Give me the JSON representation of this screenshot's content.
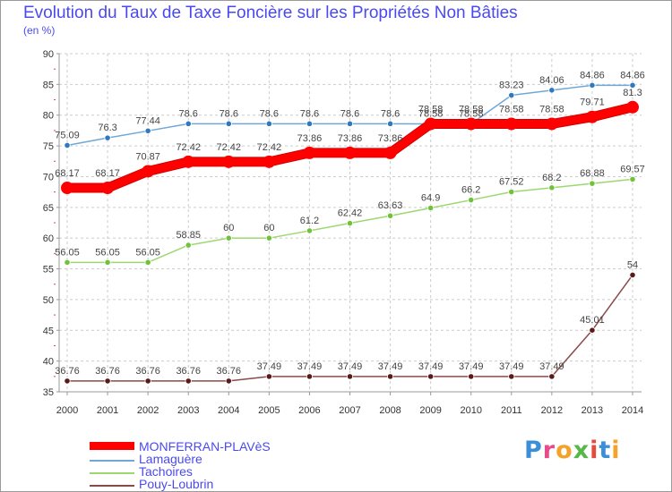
{
  "title": "Evolution du Taux de Taxe Foncière sur les Propriétés Non Bâties",
  "subtitle": "(en %)",
  "logo_text": "Proxiti",
  "logo_colors": [
    "#3a8fd8",
    "#e84a8a",
    "#f4a22a",
    "#55b848",
    "#e84a3a",
    "#3a8fd8",
    "#f4a22a"
  ],
  "chart_data": {
    "type": "line",
    "title": "Evolution du Taux de Taxe Foncière sur les Propriétés Non Bâties",
    "ylabel": "(en %)",
    "xlabel": "",
    "ylim": [
      35,
      90
    ],
    "yticks": [
      35,
      40,
      45,
      50,
      55,
      60,
      65,
      70,
      75,
      80,
      85,
      90
    ],
    "ytick_labels": [
      "35",
      "40",
      "45",
      "50",
      "55",
      "60",
      "65",
      "70",
      "75",
      "80",
      "85",
      "90"
    ],
    "categories": [
      "2000",
      "2001",
      "2002",
      "2003",
      "2004",
      "2005",
      "2006",
      "2007",
      "2008",
      "2009",
      "2010",
      "2011",
      "2012",
      "2013",
      "2014"
    ],
    "grid": "horizontal",
    "legend_position": "bottom-left",
    "series": [
      {
        "name": "Lamaguère",
        "color": "#6fa8d8",
        "marker": "#2f79c0",
        "width": "thin",
        "values": [
          75.09,
          76.3,
          77.44,
          78.6,
          78.6,
          78.6,
          78.6,
          78.6,
          78.6,
          78.58,
          78.58,
          83.23,
          84.06,
          84.86,
          84.86
        ],
        "labels": [
          "75.09",
          "76.3",
          "77.44",
          "78.6",
          "78.6",
          "78.6",
          "78.6",
          "78.6",
          "78.6",
          "78.58",
          "78.58",
          "83.23",
          "84.06",
          "84.86",
          "84.86"
        ]
      },
      {
        "name": "Tachoires",
        "color": "#9cd870",
        "marker": "#6fc23a",
        "width": "thin",
        "values": [
          56.05,
          56.05,
          56.05,
          58.85,
          60,
          60,
          61.2,
          62.42,
          63.63,
          64.9,
          66.2,
          67.52,
          68.2,
          68.88,
          69.57
        ],
        "labels": [
          "56.05",
          "56.05",
          "56.05",
          "58.85",
          "60",
          "60",
          "61.2",
          "62.42",
          "63.63",
          "64.9",
          "66.2",
          "67.52",
          "68.2",
          "68.88",
          "69.57"
        ]
      },
      {
        "name": "Pouy-Loubrin",
        "color": "#8a4a4a",
        "marker": "#5a1a1a",
        "width": "thin",
        "values": [
          36.76,
          36.76,
          36.76,
          36.76,
          36.76,
          37.49,
          37.49,
          37.49,
          37.49,
          37.49,
          37.49,
          37.49,
          37.49,
          45.01,
          54
        ],
        "labels": [
          "36.76",
          "36.76",
          "36.76",
          "36.76",
          "36.76",
          "37.49",
          "37.49",
          "37.49",
          "37.49",
          "37.49",
          "37.49",
          "37.49",
          "37.49",
          "45.01",
          "54"
        ]
      },
      {
        "name": "MONFERRAN-PLAVèS",
        "color": "#ff0000",
        "marker": "#ff0000",
        "width": "thick",
        "values": [
          68.17,
          68.17,
          70.87,
          72.42,
          72.42,
          72.42,
          73.86,
          73.86,
          73.86,
          78.58,
          78.58,
          78.58,
          78.58,
          79.71,
          81.3
        ],
        "labels": [
          "68.17",
          "68.17",
          "70.87",
          "72.42",
          "72.42",
          "72.42",
          "73.86",
          "73.86",
          "73.86",
          "78.58",
          "78.58",
          "78.58",
          "78.58",
          "79.71",
          "81.3"
        ]
      }
    ],
    "legend": [
      "MONFERRAN-PLAVèS",
      "Lamaguère",
      "Tachoires",
      "Pouy-Loubrin"
    ]
  }
}
